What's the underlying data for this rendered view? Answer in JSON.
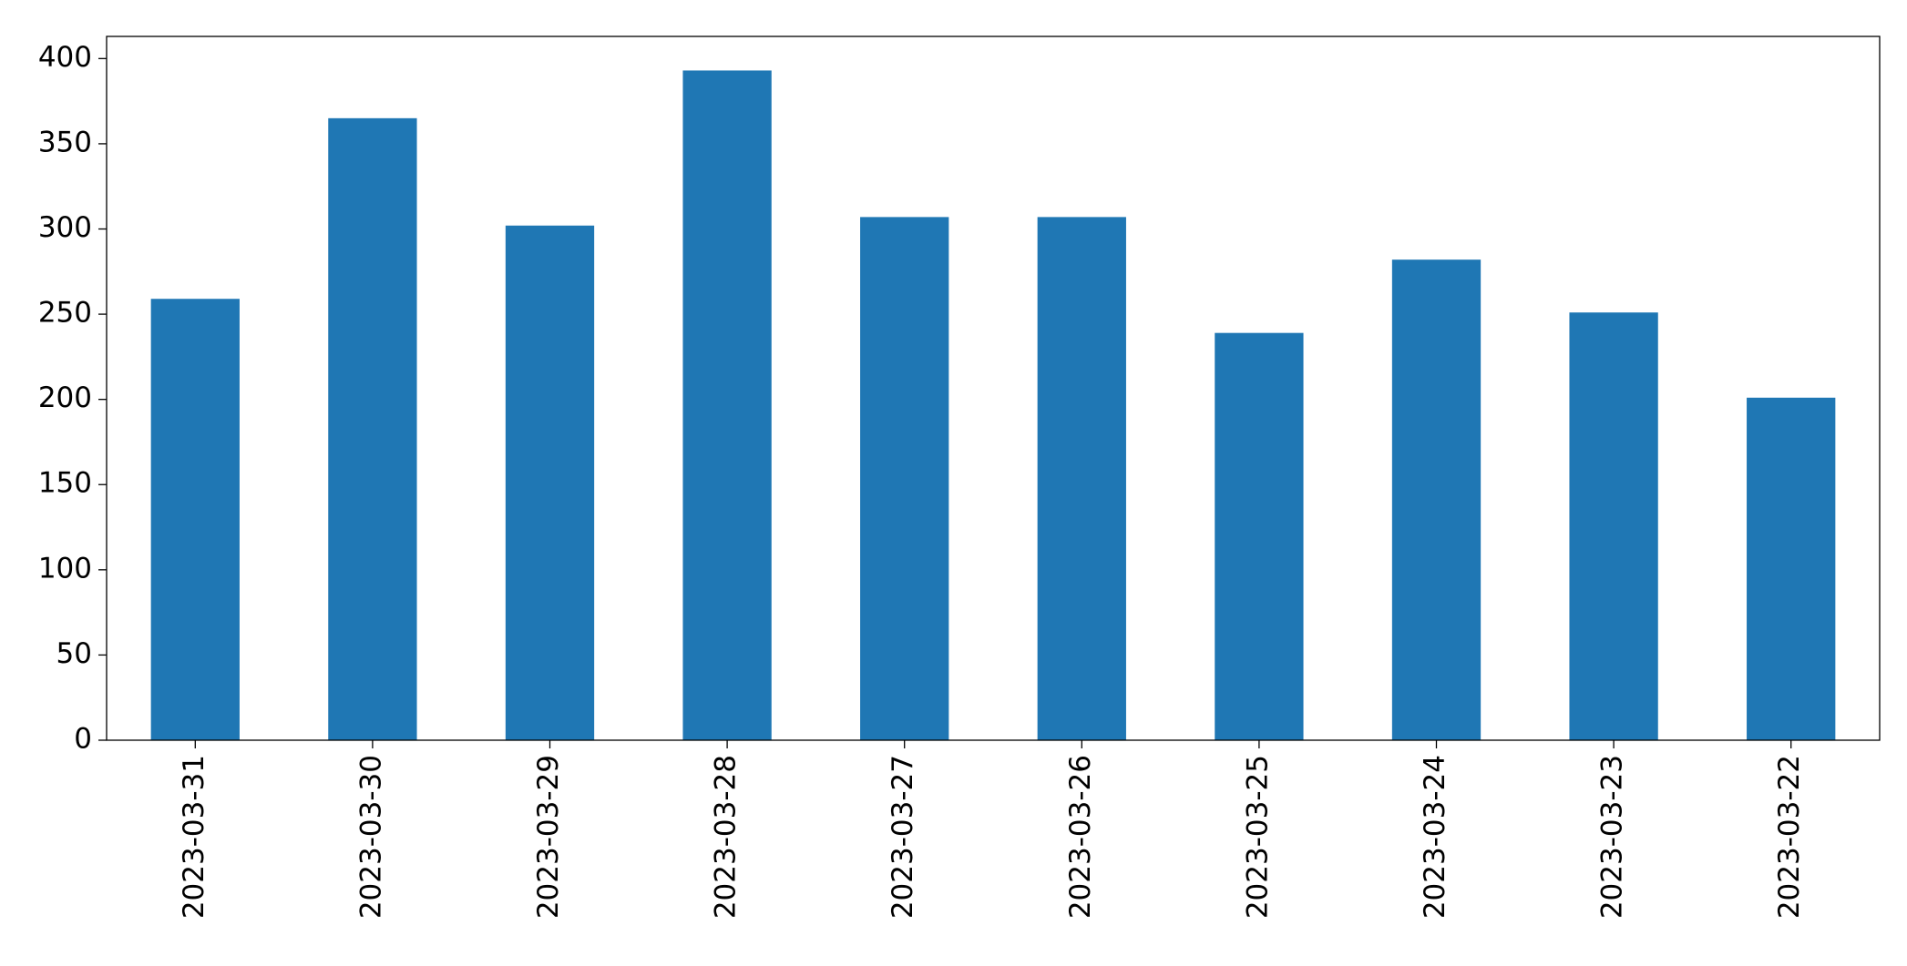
{
  "chart_data": {
    "type": "bar",
    "categories": [
      "2023-03-31",
      "2023-03-30",
      "2023-03-29",
      "2023-03-28",
      "2023-03-27",
      "2023-03-26",
      "2023-03-25",
      "2023-03-24",
      "2023-03-23",
      "2023-03-22"
    ],
    "values": [
      259,
      365,
      302,
      393,
      307,
      307,
      239,
      282,
      251,
      201
    ],
    "color": "#1f77b4",
    "ylim": [
      0,
      413
    ],
    "yticks": [
      0,
      50,
      100,
      150,
      200,
      250,
      300,
      350,
      400
    ],
    "grid": false
  }
}
